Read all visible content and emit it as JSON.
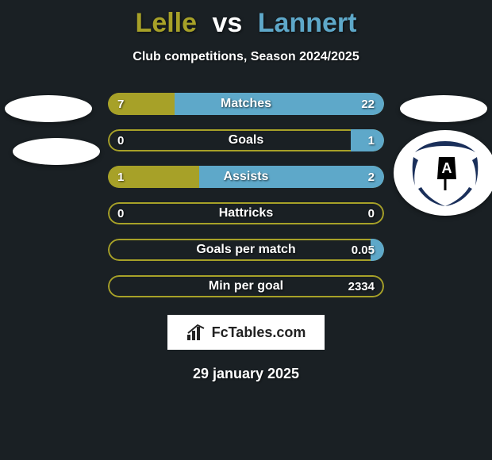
{
  "background_color": "#1a2024",
  "title": {
    "player1": "Lelle",
    "vs": "vs",
    "player2": "Lannert",
    "player1_color": "#a7a128",
    "vs_color": "#ffffff",
    "player2_color": "#5ea8c9",
    "fontsize": 34
  },
  "subtitle": {
    "text": "Club competitions, Season 2024/2025",
    "color": "#ffffff",
    "fontsize": 16
  },
  "avatars": {
    "left_ellipses": 2,
    "right_ellipses": 1,
    "ellipse_color": "#ffffff",
    "club_badge": {
      "bg_color": "#ffffff",
      "stripe_color": "#1a2f5a",
      "flag_bg": "#000000",
      "flag_letter": "A",
      "flag_letter_color": "#ffffff"
    }
  },
  "bars": {
    "track_color": "#a7a128",
    "left_fill_color": "#a7a128",
    "right_fill_color": "#5ea8c9",
    "height": 28,
    "gap": 18,
    "label_fontsize": 16,
    "value_fontsize": 15,
    "text_color": "#ffffff",
    "items": [
      {
        "label": "Matches",
        "left": "7",
        "right": "22",
        "left_pct": 24,
        "right_pct": 76
      },
      {
        "label": "Goals",
        "left": "0",
        "right": "1",
        "left_pct": 0,
        "right_pct": 12
      },
      {
        "label": "Assists",
        "left": "1",
        "right": "2",
        "left_pct": 33,
        "right_pct": 67
      },
      {
        "label": "Hattricks",
        "left": "0",
        "right": "0",
        "left_pct": 0,
        "right_pct": 0
      },
      {
        "label": "Goals per match",
        "left": "",
        "right": "0.05",
        "left_pct": 0,
        "right_pct": 5
      },
      {
        "label": "Min per goal",
        "left": "",
        "right": "2334",
        "left_pct": 0,
        "right_pct": 0
      }
    ]
  },
  "logo": {
    "text": "FcTables.com",
    "bg_color": "#ffffff",
    "text_color": "#222222",
    "icon_color": "#222222",
    "fontsize": 18
  },
  "date": {
    "text": "29 january 2025",
    "color": "#ffffff",
    "fontsize": 18
  }
}
